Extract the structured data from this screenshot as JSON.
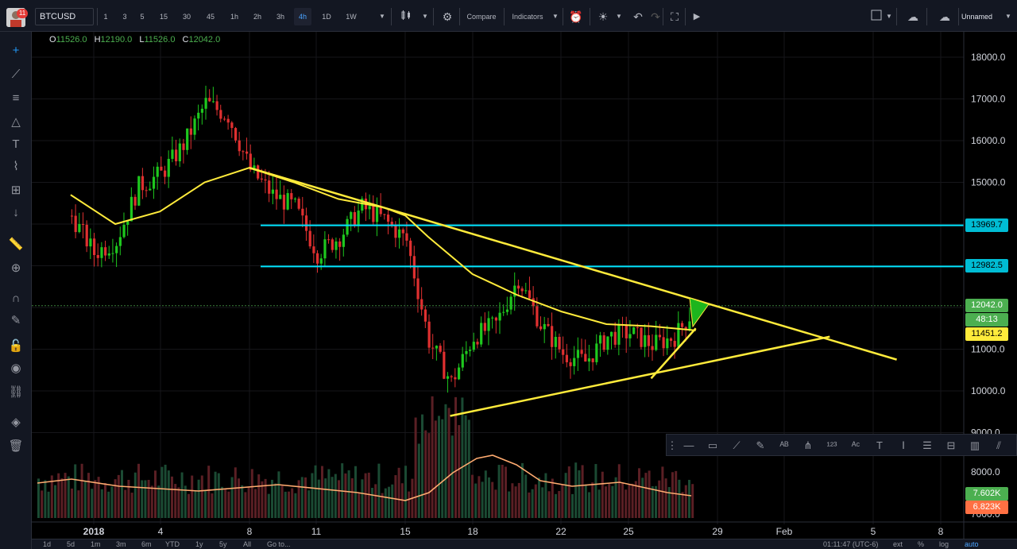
{
  "header": {
    "avatar_badge": "11",
    "symbol": "BTCUSD",
    "intervals": [
      {
        "label": "1",
        "active": false
      },
      {
        "label": "3",
        "active": false
      },
      {
        "label": "5",
        "active": false
      },
      {
        "label": "15",
        "active": false
      },
      {
        "label": "30",
        "active": false
      },
      {
        "label": "45",
        "active": false
      },
      {
        "label": "1h",
        "active": false
      },
      {
        "label": "2h",
        "active": false
      },
      {
        "label": "3h",
        "active": false
      },
      {
        "label": "4h",
        "active": true
      },
      {
        "label": "1D",
        "active": false
      },
      {
        "label": "1W",
        "active": false
      }
    ],
    "compare_label": "Compare",
    "indicators_label": "Indicators",
    "layout_name": "Unnamed",
    "icons": [
      "candles-icon",
      "settings-icon",
      "alert-icon",
      "bulb-icon",
      "undo-icon",
      "redo-icon",
      "fullscreen-icon",
      "play-icon",
      "layout-icon",
      "cloud-icon",
      "cloud-upload-icon"
    ]
  },
  "ohlc": {
    "o_label": "O",
    "o": "11526.0",
    "h_label": "H",
    "h": "12190.0",
    "l_label": "L",
    "l": "11526.0",
    "c_label": "C",
    "c": "12042.0"
  },
  "price_badges": {
    "line1": {
      "value": "13969.7",
      "color": "#00bcd4"
    },
    "line2": {
      "value": "12982.5",
      "color": "#00bcd4"
    },
    "last": {
      "value": "12042.0",
      "color": "#4caf50"
    },
    "countdown": {
      "value": "48:13",
      "color": "#4caf50"
    },
    "ma": {
      "value": "11451.2",
      "color": "#ffeb3b"
    },
    "vol": {
      "value": "7.602K",
      "color": "#4caf50"
    },
    "vol_ma": {
      "value": "6.823K",
      "color": "#ff7043"
    }
  },
  "chart_data": {
    "type": "line",
    "symbol": "BTCUSD",
    "timeframe": "4h",
    "price_axis": {
      "ticks": [
        "18000.0",
        "17000.0",
        "16000.0",
        "15000.0",
        "14000.0",
        "13000.0",
        "12000.0",
        "11000.0",
        "10000.0",
        "9000.0"
      ],
      "ylim": [
        8900,
        18300
      ]
    },
    "volume_axis": {
      "ticks": [
        "8000.0",
        "7000.0"
      ]
    },
    "time_axis": {
      "ticks": [
        "2018",
        "4",
        "8",
        "11",
        "15",
        "18",
        "22",
        "25",
        "29",
        "Feb",
        "5",
        "8"
      ]
    },
    "close_series": [
      {
        "d": "Dec 31",
        "v": 14200
      },
      {
        "d": "Jan 1",
        "v": 13300
      },
      {
        "d": "Jan 2",
        "v": 13600
      },
      {
        "d": "Jan 3",
        "v": 14900
      },
      {
        "d": "Jan 4",
        "v": 15200
      },
      {
        "d": "Jan 5",
        "v": 15900
      },
      {
        "d": "Jan 6",
        "v": 16900
      },
      {
        "d": "Jan 7",
        "v": 16600
      },
      {
        "d": "Jan 8",
        "v": 15300
      },
      {
        "d": "Jan 9",
        "v": 14700
      },
      {
        "d": "Jan 10",
        "v": 14400
      },
      {
        "d": "Jan 11",
        "v": 13300
      },
      {
        "d": "Jan 12",
        "v": 13700
      },
      {
        "d": "Jan 13",
        "v": 14400
      },
      {
        "d": "Jan 14",
        "v": 14100
      },
      {
        "d": "Jan 15",
        "v": 13600
      },
      {
        "d": "Jan 16",
        "v": 11200
      },
      {
        "d": "Jan 17",
        "v": 10200
      },
      {
        "d": "Jan 18",
        "v": 11300
      },
      {
        "d": "Jan 19",
        "v": 11600
      },
      {
        "d": "Jan 20",
        "v": 12700
      },
      {
        "d": "Jan 21",
        "v": 11600
      },
      {
        "d": "Jan 22",
        "v": 10900
      },
      {
        "d": "Jan 23",
        "v": 10700
      },
      {
        "d": "Jan 24",
        "v": 11300
      },
      {
        "d": "Jan 25",
        "v": 11400
      },
      {
        "d": "Jan 26",
        "v": 11100
      },
      {
        "d": "Jan 27",
        "v": 11300
      },
      {
        "d": "Jan 28",
        "v": 12042
      }
    ],
    "moving_average": [
      {
        "d": "Dec 31",
        "v": 14700
      },
      {
        "d": "Jan 2",
        "v": 14000
      },
      {
        "d": "Jan 4",
        "v": 14300
      },
      {
        "d": "Jan 6",
        "v": 15000
      },
      {
        "d": "Jan 8",
        "v": 15350
      },
      {
        "d": "Jan 10",
        "v": 15000
      },
      {
        "d": "Jan 12",
        "v": 14600
      },
      {
        "d": "Jan 14",
        "v": 14400
      },
      {
        "d": "Jan 15",
        "v": 14200
      },
      {
        "d": "Jan 16",
        "v": 13700
      },
      {
        "d": "Jan 18",
        "v": 12800
      },
      {
        "d": "Jan 20",
        "v": 12300
      },
      {
        "d": "Jan 22",
        "v": 11900
      },
      {
        "d": "Jan 24",
        "v": 11600
      },
      {
        "d": "Jan 26",
        "v": 11550
      },
      {
        "d": "Jan 28",
        "v": 11451
      }
    ],
    "horizontal_lines": [
      13969.7,
      12982.5
    ],
    "trendlines": [
      {
        "from": {
          "d": "Jan 8",
          "v": 15350
        },
        "to": {
          "d": "Feb 6",
          "v": 10750
        }
      },
      {
        "from": {
          "d": "Jan 17",
          "v": 9400
        },
        "to": {
          "d": "Feb 3",
          "v": 11300
        }
      },
      {
        "from": {
          "d": "Jan 26",
          "v": 10300
        },
        "to": {
          "d": "Jan 28",
          "v": 11500
        }
      }
    ],
    "grid": true
  },
  "left_tools": [
    "crosshair-icon",
    "trendline-icon",
    "fib-icon",
    "pattern-icon",
    "text-icon",
    "gann-icon",
    "measure-icon",
    "arrow-down-icon",
    "ruler-icon",
    "zoom-icon",
    "magnet-icon",
    "lock-draw-icon",
    "lock-icon",
    "eye-icon",
    "link-icon",
    "layers-icon",
    "trash-icon"
  ],
  "drawing_toolbar": [
    "grip-icon",
    "line-icon",
    "rect-icon",
    "trendline-icon",
    "pen-icon",
    "pattern-ab-icon",
    "fork-icon",
    "pattern-123-icon",
    "pattern-abc-icon",
    "text-icon",
    "text-anchor-icon",
    "fib-levels-icon",
    "fib-ext-icon",
    "fib-tools-icon",
    "fib-fan-icon"
  ],
  "bottom": {
    "ranges": [
      "1d",
      "5d",
      "1m",
      "3m",
      "6m",
      "YTD",
      "1y",
      "5y",
      "All"
    ],
    "goto": "Go to...",
    "clock": "01:11:47 (UTC-6)",
    "ext": "ext",
    "percent": "%",
    "log": "log",
    "auto": "auto"
  }
}
